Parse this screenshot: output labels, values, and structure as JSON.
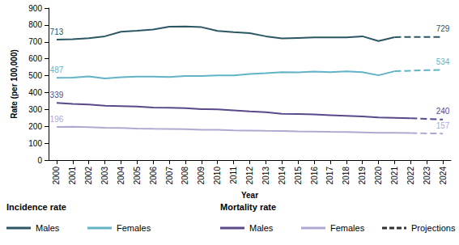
{
  "chart_data": {
    "type": "line",
    "x_label": "Year",
    "y_label": "Rate (per 100,000)",
    "categories": [
      "2000",
      "2001",
      "2002",
      "2003",
      "2004",
      "2005",
      "2006",
      "2007",
      "2008",
      "2009",
      "2010",
      "2011",
      "2012",
      "2013",
      "2014",
      "2015",
      "2016",
      "2017",
      "2018",
      "2019",
      "2020",
      "2021",
      "2022",
      "2023",
      "2024"
    ],
    "ylim": [
      0,
      900
    ],
    "yticks": [
      0,
      100,
      200,
      300,
      400,
      500,
      600,
      700,
      800,
      900
    ],
    "grid": false,
    "legend": "bottom",
    "series": [
      {
        "name": "Males",
        "group": "Incidence rate",
        "color": "#2b5663",
        "line_style": "solid",
        "values": [
          713,
          716,
          722,
          733,
          760,
          766,
          773,
          790,
          791,
          787,
          765,
          758,
          752,
          733,
          720,
          723,
          726,
          726,
          726,
          733,
          705,
          728,
          null,
          null,
          null
        ],
        "value_labels": [
          "713",
          null,
          null,
          null,
          null,
          null,
          null,
          null,
          null,
          null,
          null,
          null,
          null,
          null,
          null,
          null,
          null,
          null,
          null,
          null,
          null,
          null,
          null,
          null,
          null
        ]
      },
      {
        "name": "Females",
        "group": "Incidence rate",
        "color": "#62b3c6",
        "line_style": "solid",
        "values": [
          487,
          488,
          496,
          483,
          491,
          494,
          494,
          492,
          498,
          498,
          502,
          501,
          510,
          515,
          521,
          520,
          524,
          521,
          525,
          521,
          502,
          526,
          null,
          null,
          null
        ],
        "value_labels": [
          "487",
          null,
          null,
          null,
          null,
          null,
          null,
          null,
          null,
          null,
          null,
          null,
          null,
          null,
          null,
          null,
          null,
          null,
          null,
          null,
          null,
          null,
          null,
          null,
          null
        ]
      },
      {
        "name": "Males",
        "group": "Mortality rate",
        "color": "#59498a",
        "line_style": "solid",
        "values": [
          339,
          333,
          329,
          322,
          320,
          317,
          311,
          310,
          307,
          302,
          300,
          295,
          288,
          284,
          274,
          273,
          270,
          266,
          262,
          258,
          252,
          250,
          248,
          null,
          null
        ],
        "value_labels": [
          "339",
          null,
          null,
          null,
          null,
          null,
          null,
          null,
          null,
          null,
          null,
          null,
          null,
          null,
          null,
          null,
          null,
          null,
          null,
          null,
          null,
          null,
          null,
          null,
          null
        ]
      },
      {
        "name": "Females",
        "group": "Mortality rate",
        "color": "#b1a8d2",
        "line_style": "solid",
        "values": [
          196,
          197,
          195,
          192,
          190,
          187,
          185,
          184,
          183,
          180,
          179,
          176,
          175,
          173,
          172,
          170,
          169,
          167,
          166,
          164,
          162,
          161,
          160,
          null,
          null
        ],
        "value_labels": [
          "196",
          null,
          null,
          null,
          null,
          null,
          null,
          null,
          null,
          null,
          null,
          null,
          null,
          null,
          null,
          null,
          null,
          null,
          null,
          null,
          null,
          null,
          null,
          null,
          null
        ]
      },
      {
        "name": "Projections",
        "color": "#2b5663",
        "line_style": "dashed",
        "values": [
          null,
          null,
          null,
          null,
          null,
          null,
          null,
          null,
          null,
          null,
          null,
          null,
          null,
          null,
          null,
          null,
          null,
          null,
          null,
          null,
          null,
          728,
          729,
          729,
          729
        ],
        "value_labels": [
          null,
          null,
          null,
          null,
          null,
          null,
          null,
          null,
          null,
          null,
          null,
          null,
          null,
          null,
          null,
          null,
          null,
          null,
          null,
          null,
          null,
          null,
          null,
          null,
          "729"
        ]
      },
      {
        "name": "Projections",
        "color": "#62b3c6",
        "line_style": "dashed",
        "values": [
          null,
          null,
          null,
          null,
          null,
          null,
          null,
          null,
          null,
          null,
          null,
          null,
          null,
          null,
          null,
          null,
          null,
          null,
          null,
          null,
          null,
          526,
          529,
          532,
          534
        ],
        "value_labels": [
          null,
          null,
          null,
          null,
          null,
          null,
          null,
          null,
          null,
          null,
          null,
          null,
          null,
          null,
          null,
          null,
          null,
          null,
          null,
          null,
          null,
          null,
          null,
          null,
          "534"
        ]
      },
      {
        "name": "Projections",
        "color": "#59498a",
        "line_style": "dashed",
        "values": [
          null,
          null,
          null,
          null,
          null,
          null,
          null,
          null,
          null,
          null,
          null,
          null,
          null,
          null,
          null,
          null,
          null,
          null,
          null,
          null,
          null,
          null,
          248,
          244,
          240
        ],
        "value_labels": [
          null,
          null,
          null,
          null,
          null,
          null,
          null,
          null,
          null,
          null,
          null,
          null,
          null,
          null,
          null,
          null,
          null,
          null,
          null,
          null,
          null,
          null,
          null,
          null,
          "240"
        ]
      },
      {
        "name": "Projections",
        "color": "#b1a8d2",
        "line_style": "dashed",
        "values": [
          null,
          null,
          null,
          null,
          null,
          null,
          null,
          null,
          null,
          null,
          null,
          null,
          null,
          null,
          null,
          null,
          null,
          null,
          null,
          null,
          null,
          null,
          160,
          158,
          157
        ],
        "value_labels": [
          null,
          null,
          null,
          null,
          null,
          null,
          null,
          null,
          null,
          null,
          null,
          null,
          null,
          null,
          null,
          null,
          null,
          null,
          null,
          null,
          null,
          null,
          null,
          null,
          "157"
        ]
      }
    ]
  }
}
